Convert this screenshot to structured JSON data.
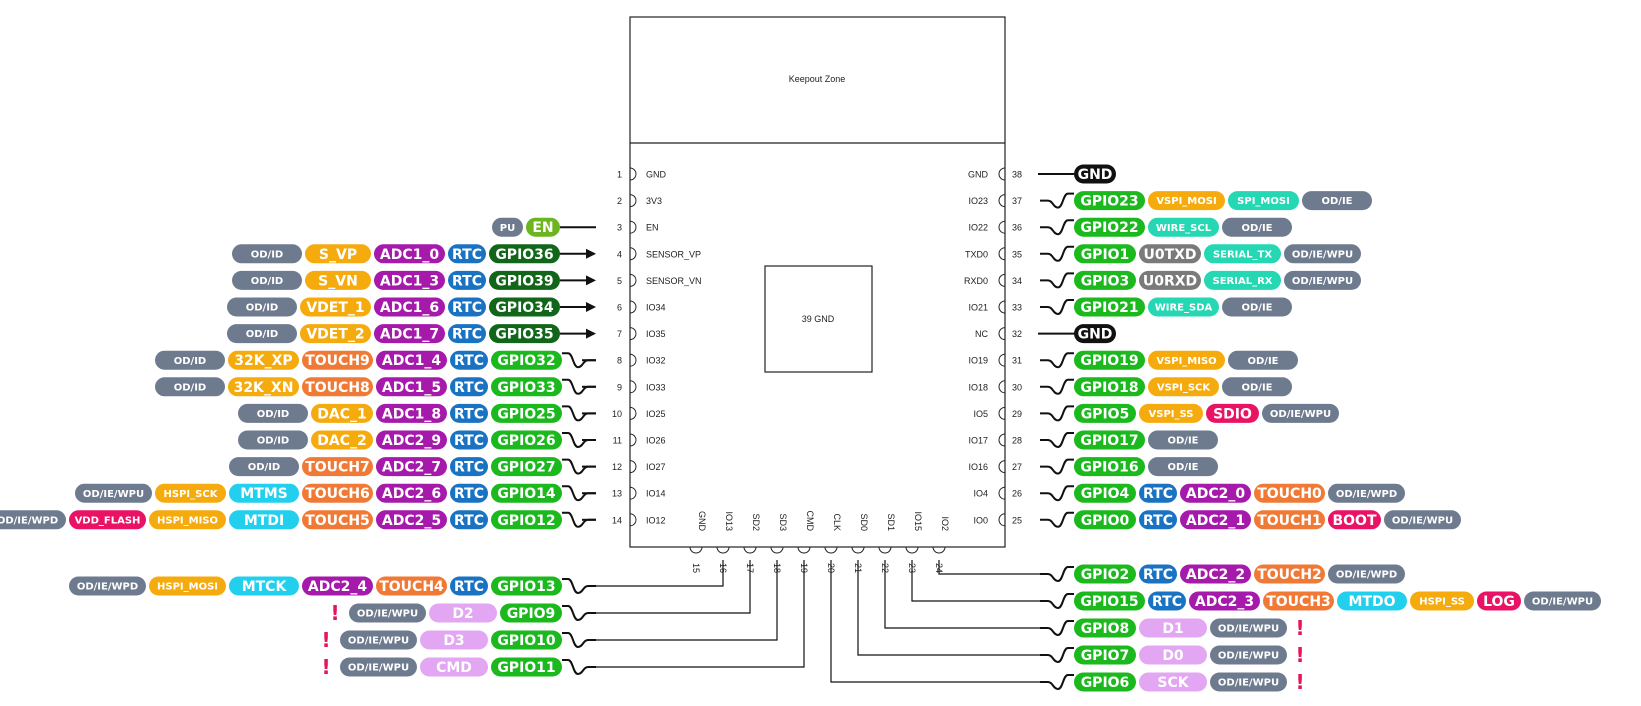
{
  "colors": {
    "attr": "#6e7b8f",
    "sig": "#f5ab0e",
    "adc": "#a61aab",
    "rtc": "#1a73c2",
    "gpio": "#1bb81e",
    "gpio_input_only": "#11661a",
    "touch": "#f07a35",
    "pu": "#6e7b8f",
    "en": "#6bb61e",
    "gnd": "#111111",
    "uart": "#7a7a7a",
    "teal": "#26d7b3",
    "cyan": "#22d0ee",
    "pink": "#ea1264",
    "flash": "#e3a6f2",
    "dac": "#f5ab0e"
  },
  "module": {
    "keepout_label": "Keepout Zone",
    "center_label": "39 GND"
  },
  "left_pins": [
    {
      "num": "1",
      "name": "GND",
      "labels": []
    },
    {
      "num": "2",
      "name": "3V3",
      "labels": []
    },
    {
      "num": "3",
      "name": "EN",
      "line": "plain",
      "labels": [
        {
          "t": "PU",
          "c": "pu"
        },
        {
          "t": "EN",
          "c": "en"
        }
      ]
    },
    {
      "num": "4",
      "name": "SENSOR_VP",
      "line": "arrow",
      "labels": [
        {
          "t": "OD/ID",
          "c": "attr"
        },
        {
          "t": "S_VP",
          "c": "sig"
        },
        {
          "t": "ADC1_0",
          "c": "adc"
        },
        {
          "t": "RTC",
          "c": "rtc"
        },
        {
          "t": "GPIO36",
          "c": "gpio_input_only"
        }
      ]
    },
    {
      "num": "5",
      "name": "SENSOR_VN",
      "line": "arrow",
      "labels": [
        {
          "t": "OD/ID",
          "c": "attr"
        },
        {
          "t": "S_VN",
          "c": "sig"
        },
        {
          "t": "ADC1_3",
          "c": "adc"
        },
        {
          "t": "RTC",
          "c": "rtc"
        },
        {
          "t": "GPIO39",
          "c": "gpio_input_only"
        }
      ]
    },
    {
      "num": "6",
      "name": "IO34",
      "line": "arrow",
      "labels": [
        {
          "t": "OD/ID",
          "c": "attr"
        },
        {
          "t": "VDET_1",
          "c": "sig"
        },
        {
          "t": "ADC1_6",
          "c": "adc"
        },
        {
          "t": "RTC",
          "c": "rtc"
        },
        {
          "t": "GPIO34",
          "c": "gpio_input_only"
        }
      ]
    },
    {
      "num": "7",
      "name": "IO35",
      "line": "arrow",
      "labels": [
        {
          "t": "OD/ID",
          "c": "attr"
        },
        {
          "t": "VDET_2",
          "c": "sig"
        },
        {
          "t": "ADC1_7",
          "c": "adc"
        },
        {
          "t": "RTC",
          "c": "rtc"
        },
        {
          "t": "GPIO35",
          "c": "gpio_input_only"
        }
      ]
    },
    {
      "num": "8",
      "name": "IO32",
      "line": "wave",
      "labels": [
        {
          "t": "OD/ID",
          "c": "attr"
        },
        {
          "t": "32K_XP",
          "c": "sig"
        },
        {
          "t": "TOUCH9",
          "c": "touch"
        },
        {
          "t": "ADC1_4",
          "c": "adc"
        },
        {
          "t": "RTC",
          "c": "rtc"
        },
        {
          "t": "GPIO32",
          "c": "gpio"
        }
      ]
    },
    {
      "num": "9",
      "name": "IO33",
      "line": "wave",
      "labels": [
        {
          "t": "OD/ID",
          "c": "attr"
        },
        {
          "t": "32K_XN",
          "c": "sig"
        },
        {
          "t": "TOUCH8",
          "c": "touch"
        },
        {
          "t": "ADC1_5",
          "c": "adc"
        },
        {
          "t": "RTC",
          "c": "rtc"
        },
        {
          "t": "GPIO33",
          "c": "gpio"
        }
      ]
    },
    {
      "num": "10",
      "name": "IO25",
      "line": "wave",
      "labels": [
        {
          "t": "OD/ID",
          "c": "attr"
        },
        {
          "t": "DAC_1",
          "c": "dac"
        },
        {
          "t": "ADC1_8",
          "c": "adc"
        },
        {
          "t": "RTC",
          "c": "rtc"
        },
        {
          "t": "GPIO25",
          "c": "gpio"
        }
      ]
    },
    {
      "num": "11",
      "name": "IO26",
      "line": "wave",
      "labels": [
        {
          "t": "OD/ID",
          "c": "attr"
        },
        {
          "t": "DAC_2",
          "c": "dac"
        },
        {
          "t": "ADC2_9",
          "c": "adc"
        },
        {
          "t": "RTC",
          "c": "rtc"
        },
        {
          "t": "GPIO26",
          "c": "gpio"
        }
      ]
    },
    {
      "num": "12",
      "name": "IO27",
      "line": "wave",
      "labels": [
        {
          "t": "OD/ID",
          "c": "attr"
        },
        {
          "t": "TOUCH7",
          "c": "touch"
        },
        {
          "t": "ADC2_7",
          "c": "adc"
        },
        {
          "t": "RTC",
          "c": "rtc"
        },
        {
          "t": "GPIO27",
          "c": "gpio"
        }
      ]
    },
    {
      "num": "13",
      "name": "IO14",
      "line": "wave",
      "labels": [
        {
          "t": "OD/IE/WPU",
          "c": "attr"
        },
        {
          "t": "HSPI_SCK",
          "c": "sig"
        },
        {
          "t": "MTMS",
          "c": "cyan"
        },
        {
          "t": "TOUCH6",
          "c": "touch"
        },
        {
          "t": "ADC2_6",
          "c": "adc"
        },
        {
          "t": "RTC",
          "c": "rtc"
        },
        {
          "t": "GPIO14",
          "c": "gpio"
        }
      ]
    },
    {
      "num": "14",
      "name": "IO12",
      "line": "wave",
      "labels": [
        {
          "t": "OD/IE/WPD",
          "c": "attr"
        },
        {
          "t": "VDD_FLASH",
          "c": "pink"
        },
        {
          "t": "HSPI_MISO",
          "c": "sig"
        },
        {
          "t": "MTDI",
          "c": "cyan"
        },
        {
          "t": "TOUCH5",
          "c": "touch"
        },
        {
          "t": "ADC2_5",
          "c": "adc"
        },
        {
          "t": "RTC",
          "c": "rtc"
        },
        {
          "t": "GPIO12",
          "c": "gpio"
        }
      ]
    }
  ],
  "right_pins": [
    {
      "num": "38",
      "name": "GND",
      "line": "plain",
      "labels": [
        {
          "t": "GND",
          "c": "gnd"
        }
      ]
    },
    {
      "num": "37",
      "name": "IO23",
      "line": "wave",
      "labels": [
        {
          "t": "GPIO23",
          "c": "gpio"
        },
        {
          "t": "VSPI_MOSI",
          "c": "sig"
        },
        {
          "t": "SPI_MOSI",
          "c": "teal"
        },
        {
          "t": "OD/IE",
          "c": "attr"
        }
      ]
    },
    {
      "num": "36",
      "name": "IO22",
      "line": "wave",
      "labels": [
        {
          "t": "GPIO22",
          "c": "gpio"
        },
        {
          "t": "WIRE_SCL",
          "c": "teal"
        },
        {
          "t": "OD/IE",
          "c": "attr"
        }
      ]
    },
    {
      "num": "35",
      "name": "TXD0",
      "line": "wave",
      "labels": [
        {
          "t": "GPIO1",
          "c": "gpio"
        },
        {
          "t": "U0TXD",
          "c": "uart"
        },
        {
          "t": "SERIAL_TX",
          "c": "teal"
        },
        {
          "t": "OD/IE/WPU",
          "c": "attr"
        }
      ]
    },
    {
      "num": "34",
      "name": "RXD0",
      "line": "wave",
      "labels": [
        {
          "t": "GPIO3",
          "c": "gpio"
        },
        {
          "t": "U0RXD",
          "c": "uart"
        },
        {
          "t": "SERIAL_RX",
          "c": "teal"
        },
        {
          "t": "OD/IE/WPU",
          "c": "attr"
        }
      ]
    },
    {
      "num": "33",
      "name": "IO21",
      "line": "wave",
      "labels": [
        {
          "t": "GPIO21",
          "c": "gpio"
        },
        {
          "t": "WIRE_SDA",
          "c": "teal"
        },
        {
          "t": "OD/IE",
          "c": "attr"
        }
      ]
    },
    {
      "num": "32",
      "name": "NC",
      "line": "plain",
      "labels": [
        {
          "t": "GND",
          "c": "gnd"
        }
      ]
    },
    {
      "num": "31",
      "name": "IO19",
      "line": "wave",
      "labels": [
        {
          "t": "GPIO19",
          "c": "gpio"
        },
        {
          "t": "VSPI_MISO",
          "c": "sig"
        },
        {
          "t": "OD/IE",
          "c": "attr"
        }
      ]
    },
    {
      "num": "30",
      "name": "IO18",
      "line": "wave",
      "labels": [
        {
          "t": "GPIO18",
          "c": "gpio"
        },
        {
          "t": "VSPI_SCK",
          "c": "sig"
        },
        {
          "t": "OD/IE",
          "c": "attr"
        }
      ]
    },
    {
      "num": "29",
      "name": "IO5",
      "line": "wave",
      "labels": [
        {
          "t": "GPIO5",
          "c": "gpio"
        },
        {
          "t": "VSPI_SS",
          "c": "sig"
        },
        {
          "t": "SDIO",
          "c": "pink"
        },
        {
          "t": "OD/IE/WPU",
          "c": "attr"
        }
      ]
    },
    {
      "num": "28",
      "name": "IO17",
      "line": "wave",
      "labels": [
        {
          "t": "GPIO17",
          "c": "gpio"
        },
        {
          "t": "OD/IE",
          "c": "attr"
        }
      ]
    },
    {
      "num": "27",
      "name": "IO16",
      "line": "wave",
      "labels": [
        {
          "t": "GPIO16",
          "c": "gpio"
        },
        {
          "t": "OD/IE",
          "c": "attr"
        }
      ]
    },
    {
      "num": "26",
      "name": "IO4",
      "line": "wave",
      "labels": [
        {
          "t": "GPIO4",
          "c": "gpio"
        },
        {
          "t": "RTC",
          "c": "rtc"
        },
        {
          "t": "ADC2_0",
          "c": "adc"
        },
        {
          "t": "TOUCH0",
          "c": "touch"
        },
        {
          "t": "OD/IE/WPD",
          "c": "attr"
        }
      ]
    },
    {
      "num": "25",
      "name": "IO0",
      "line": "wave",
      "labels": [
        {
          "t": "GPIO0",
          "c": "gpio"
        },
        {
          "t": "RTC",
          "c": "rtc"
        },
        {
          "t": "ADC2_1",
          "c": "adc"
        },
        {
          "t": "TOUCH1",
          "c": "touch"
        },
        {
          "t": "BOOT",
          "c": "pink"
        },
        {
          "t": "OD/IE/WPU",
          "c": "attr"
        }
      ]
    }
  ],
  "bottom_pins": [
    {
      "num": "15",
      "name": "GND"
    },
    {
      "num": "16",
      "name": "IO13"
    },
    {
      "num": "17",
      "name": "SD2"
    },
    {
      "num": "18",
      "name": "SD3"
    },
    {
      "num": "19",
      "name": "CMD"
    },
    {
      "num": "20",
      "name": "CLK"
    },
    {
      "num": "21",
      "name": "SD0"
    },
    {
      "num": "22",
      "name": "SD1"
    },
    {
      "num": "23",
      "name": "IO15"
    },
    {
      "num": "24",
      "name": "IO2"
    }
  ],
  "bottom_left_groups": [
    {
      "pin": "16",
      "warn": "",
      "labels": [
        {
          "t": "OD/IE/WPD",
          "c": "attr"
        },
        {
          "t": "HSPI_MOSI",
          "c": "sig"
        },
        {
          "t": "MTCK",
          "c": "cyan"
        },
        {
          "t": "ADC2_4",
          "c": "adc"
        },
        {
          "t": "TOUCH4",
          "c": "touch"
        },
        {
          "t": "RTC",
          "c": "rtc"
        },
        {
          "t": "GPIO13",
          "c": "gpio"
        }
      ]
    },
    {
      "pin": "17",
      "warn": "!",
      "labels": [
        {
          "t": "OD/IE/WPU",
          "c": "attr"
        },
        {
          "t": "D2",
          "c": "flash"
        },
        {
          "t": "GPIO9",
          "c": "gpio"
        }
      ]
    },
    {
      "pin": "18",
      "warn": "!",
      "labels": [
        {
          "t": "OD/IE/WPU",
          "c": "attr"
        },
        {
          "t": "D3",
          "c": "flash"
        },
        {
          "t": "GPIO10",
          "c": "gpio"
        }
      ]
    },
    {
      "pin": "19",
      "warn": "!",
      "labels": [
        {
          "t": "OD/IE/WPU",
          "c": "attr"
        },
        {
          "t": "CMD",
          "c": "flash"
        },
        {
          "t": "GPIO11",
          "c": "gpio"
        }
      ]
    }
  ],
  "bottom_right_groups": [
    {
      "pin": "24",
      "warn": "",
      "labels": [
        {
          "t": "GPIO2",
          "c": "gpio"
        },
        {
          "t": "RTC",
          "c": "rtc"
        },
        {
          "t": "ADC2_2",
          "c": "adc"
        },
        {
          "t": "TOUCH2",
          "c": "touch"
        },
        {
          "t": "OD/IE/WPD",
          "c": "attr"
        }
      ]
    },
    {
      "pin": "23",
      "warn": "",
      "labels": [
        {
          "t": "GPIO15",
          "c": "gpio"
        },
        {
          "t": "RTC",
          "c": "rtc"
        },
        {
          "t": "ADC2_3",
          "c": "adc"
        },
        {
          "t": "TOUCH3",
          "c": "touch"
        },
        {
          "t": "MTDO",
          "c": "cyan"
        },
        {
          "t": "HSPI_SS",
          "c": "sig"
        },
        {
          "t": "LOG",
          "c": "pink"
        },
        {
          "t": "OD/IE/WPU",
          "c": "attr"
        }
      ]
    },
    {
      "pin": "22",
      "warn": "!",
      "labels": [
        {
          "t": "GPIO8",
          "c": "gpio"
        },
        {
          "t": "D1",
          "c": "flash"
        },
        {
          "t": "OD/IE/WPU",
          "c": "attr"
        }
      ]
    },
    {
      "pin": "21",
      "warn": "!",
      "labels": [
        {
          "t": "GPIO7",
          "c": "gpio"
        },
        {
          "t": "D0",
          "c": "flash"
        },
        {
          "t": "OD/IE/WPU",
          "c": "attr"
        }
      ]
    },
    {
      "pin": "20",
      "warn": "!",
      "labels": [
        {
          "t": "GPIO6",
          "c": "gpio"
        },
        {
          "t": "SCK",
          "c": "flash"
        },
        {
          "t": "OD/IE/WPU",
          "c": "attr"
        }
      ]
    }
  ]
}
